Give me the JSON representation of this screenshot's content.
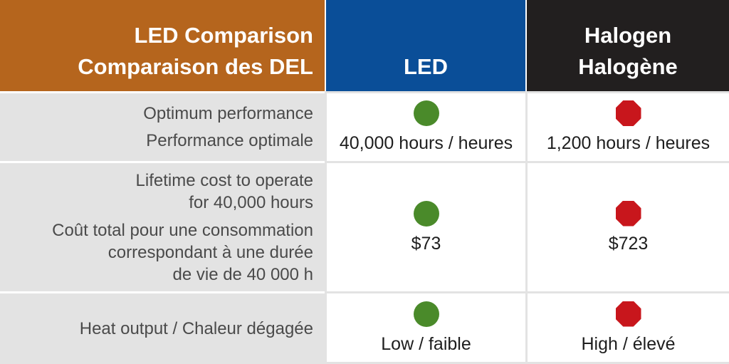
{
  "header": {
    "label_line1": "LED Comparison",
    "label_line2": "Comparaison des DEL",
    "led": "LED",
    "halogen_line1": "Halogen",
    "halogen_line2": "Halogène"
  },
  "colors": {
    "header_label_bg": "#b5651d",
    "header_led_bg": "#0a4e98",
    "header_halogen_bg": "#221f1f",
    "good_indicator": "#4a8a2a",
    "bad_indicator": "#c8161c"
  },
  "rows": [
    {
      "label_lines": [
        "Optimum performance",
        "Performance optimale"
      ],
      "led": {
        "indicator": "green-circle-icon",
        "value": "40,000 hours / heures"
      },
      "halogen": {
        "indicator": "red-octagon-icon",
        "value": "1,200 hours / heures"
      }
    },
    {
      "label_lines": [
        "Lifetime cost to operate",
        "for 40,000 hours",
        "Coût total pour une consommation",
        "correspondant à une durée",
        "de vie de 40 000 h"
      ],
      "led": {
        "indicator": "green-circle-icon",
        "value": "$73"
      },
      "halogen": {
        "indicator": "red-octagon-icon",
        "value": "$723"
      }
    },
    {
      "label_lines": [
        "Heat output / Chaleur dégagée"
      ],
      "led": {
        "indicator": "green-circle-icon",
        "value": "Low / faible"
      },
      "halogen": {
        "indicator": "red-octagon-icon",
        "value": "High / élevé"
      }
    }
  ]
}
